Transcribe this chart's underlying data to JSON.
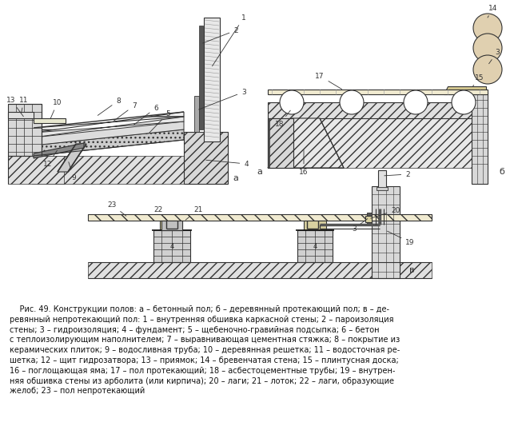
{
  "bg_color": "#ffffff",
  "line_color": "#333333",
  "fig_width": 6.43,
  "fig_height": 5.43,
  "caption_lines": [
    "    Рис. 49. Конструкции полов: а – бетонный пол; б – деревянный протекающий пол; в – де-",
    "ревянный непротекающий пол: 1 – внутренняя обшивка каркасной стены; 2 – пароизоляция",
    "стены; 3 – гидроизоляция; 4 – фундамент; 5 – щебеночно-гравийная подсыпка; 6 – бетон",
    "с теплоизолирующим наполнителем; 7 – выравнивающая цементная стяжка; 8 – покрытие из",
    "керамических плиток; 9 – водосливная труба; 10 – деревянная решетка; 11 – водосточная ре-",
    "шетка; 12 – щит гидрозатвора; 13 – приямок; 14 – бревенчатая стена; 15 – плинтусная доска;",
    "16 – поглощающая яма; 17 – пол протекающий; 18 – асбестоцементные трубы; 19 – внутрен-",
    "няя обшивка стены из арболита (или кирпича); 20 – лаги; 21 – лоток; 22 – лаги, образующие",
    "желоб; 23 – пол непротекающий"
  ]
}
